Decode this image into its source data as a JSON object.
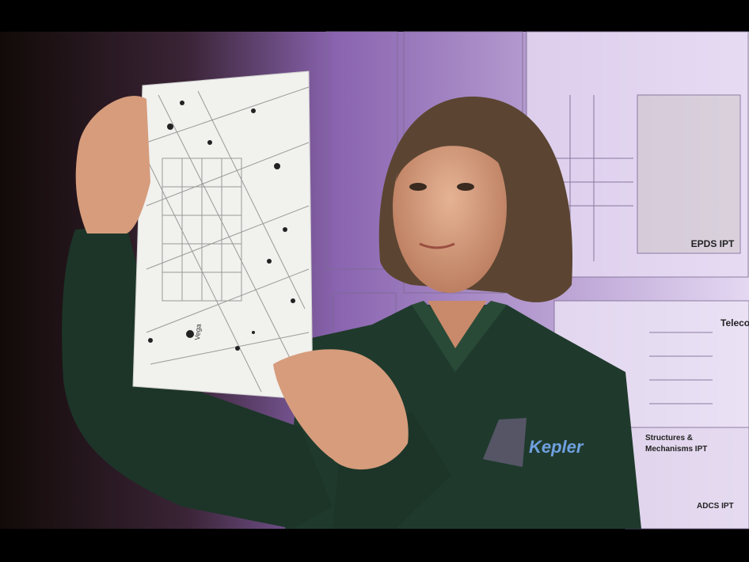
{
  "posters": {
    "labels": [
      "EPDS IPT",
      "Telecom I",
      "Structures &",
      "Mechanisms IPT",
      "ADCS IPT"
    ]
  },
  "star_chart": {
    "label": "Vega"
  },
  "shirt_logo": "Kepler"
}
